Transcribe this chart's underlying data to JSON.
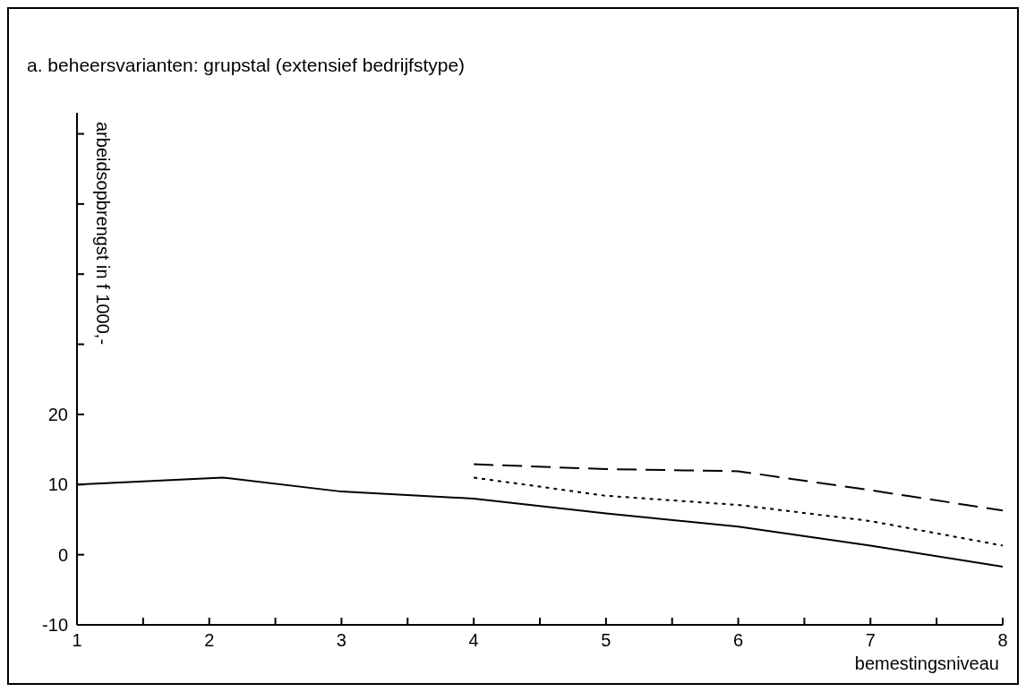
{
  "chart_data": {
    "type": "line",
    "title": "a. beheersvarianten: grupstal (extensief bedrijfstype)",
    "xlabel": "bemestingsniveau",
    "ylabel": "arbeidsopbrengst in f 1000,-",
    "xlim": [
      1,
      8
    ],
    "xticks": [
      1,
      {
        "value": 1.5,
        "label": null
      },
      2,
      {
        "value": 2.5,
        "label": null
      },
      3,
      {
        "value": 3.5,
        "label": null
      },
      4,
      {
        "value": 4.5,
        "label": null
      },
      5,
      {
        "value": 5.5,
        "label": null
      },
      6,
      {
        "value": 6.5,
        "label": null
      },
      7,
      {
        "value": 7.5,
        "label": null
      },
      8
    ],
    "ylim": [
      -10,
      63
    ],
    "yticks": [
      -10,
      0,
      10,
      20,
      {
        "value": 30,
        "label": null
      },
      {
        "value": 40,
        "label": null
      },
      {
        "value": 50,
        "label": null
      },
      {
        "value": 60,
        "label": null
      }
    ],
    "grid": false,
    "marker": "none",
    "series": [
      {
        "color": "#000000",
        "line_style": "solid",
        "x": [
          1,
          2.1,
          3,
          4,
          5,
          6,
          7,
          8
        ],
        "values": [
          10,
          11,
          9,
          8,
          5.9,
          4,
          1.3,
          -1.7
        ]
      },
      {
        "color": "#000000",
        "line_style": "dashed",
        "x": [
          4,
          5,
          6,
          7,
          8
        ],
        "values": [
          12.9,
          12.2,
          11.9,
          9.2,
          6.3
        ]
      },
      {
        "color": "#000000",
        "line_style": "dotted",
        "x": [
          4,
          5,
          6,
          7,
          8
        ],
        "values": [
          11,
          8.4,
          7.1,
          4.8,
          1.3
        ]
      }
    ]
  }
}
